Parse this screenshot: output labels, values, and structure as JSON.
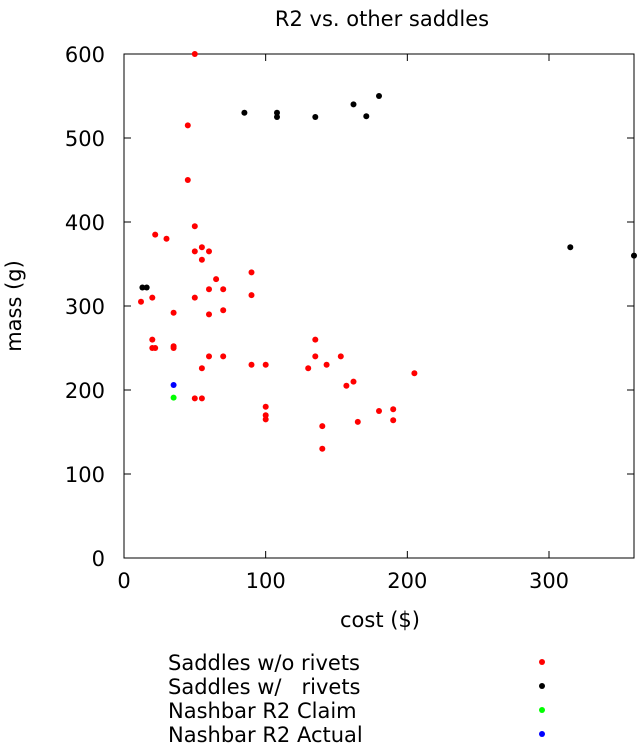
{
  "chart_data": {
    "type": "scatter",
    "title": "R2 vs. other saddles",
    "xlabel": "cost ($)",
    "ylabel": "mass (g)",
    "xlim": [
      0,
      360
    ],
    "ylim": [
      0,
      600
    ],
    "xticks": [
      0,
      100,
      200,
      300
    ],
    "yticks": [
      0,
      100,
      200,
      300,
      400,
      500,
      600
    ],
    "grid": false,
    "legend_position": "bottom",
    "series": [
      {
        "name": "Saddles w/o rivets",
        "color": "#ff0000",
        "points": [
          [
            50,
            600
          ],
          [
            45,
            515
          ],
          [
            45,
            450
          ],
          [
            50,
            395
          ],
          [
            22,
            385
          ],
          [
            30,
            380
          ],
          [
            55,
            370
          ],
          [
            50,
            365
          ],
          [
            60,
            365
          ],
          [
            55,
            355
          ],
          [
            65,
            332
          ],
          [
            90,
            340
          ],
          [
            60,
            320
          ],
          [
            70,
            320
          ],
          [
            12,
            305
          ],
          [
            20,
            310
          ],
          [
            50,
            310
          ],
          [
            90,
            313
          ],
          [
            70,
            295
          ],
          [
            35,
            292
          ],
          [
            60,
            290
          ],
          [
            20,
            260
          ],
          [
            20,
            250
          ],
          [
            22,
            250
          ],
          [
            35,
            252
          ],
          [
            35,
            250
          ],
          [
            60,
            240
          ],
          [
            70,
            240
          ],
          [
            55,
            226
          ],
          [
            90,
            230
          ],
          [
            100,
            230
          ],
          [
            135,
            260
          ],
          [
            135,
            240
          ],
          [
            130,
            226
          ],
          [
            143,
            230
          ],
          [
            153,
            240
          ],
          [
            157,
            205
          ],
          [
            162,
            210
          ],
          [
            205,
            220
          ],
          [
            50,
            190
          ],
          [
            55,
            190
          ],
          [
            100,
            180
          ],
          [
            100,
            170
          ],
          [
            100,
            165
          ],
          [
            140,
            157
          ],
          [
            140,
            130
          ],
          [
            165,
            162
          ],
          [
            180,
            175
          ],
          [
            190,
            177
          ],
          [
            190,
            164
          ]
        ]
      },
      {
        "name": "Saddles w/   rivets",
        "color": "#000000",
        "points": [
          [
            13,
            322
          ],
          [
            16,
            322
          ],
          [
            85,
            530
          ],
          [
            108,
            530
          ],
          [
            108,
            525
          ],
          [
            135,
            525
          ],
          [
            162,
            540
          ],
          [
            171,
            526
          ],
          [
            180,
            550
          ],
          [
            315,
            370
          ],
          [
            360,
            360
          ]
        ]
      },
      {
        "name": "Nashbar R2 Claim",
        "color": "#00ff00",
        "points": [
          [
            35,
            191
          ]
        ]
      },
      {
        "name": "Nashbar R2 Actual",
        "color": "#0000ff",
        "points": [
          [
            35,
            206
          ]
        ]
      }
    ]
  }
}
